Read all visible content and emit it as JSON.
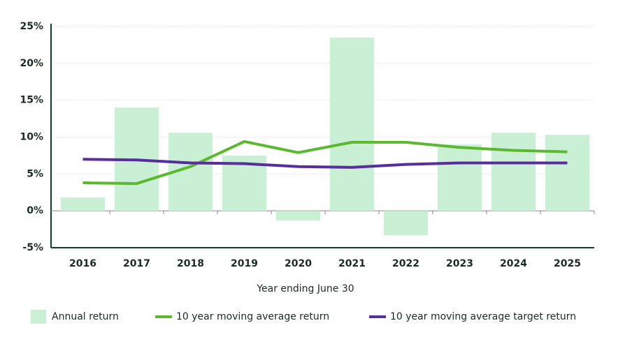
{
  "chart_data": {
    "type": "combo",
    "x_label": "Year ending June 30",
    "categories": [
      "2016",
      "2017",
      "2018",
      "2019",
      "2020",
      "2021",
      "2022",
      "2023",
      "2024",
      "2025"
    ],
    "ylim": [
      -5,
      25
    ],
    "yticks": [
      {
        "value": -5,
        "label": "-5%"
      },
      {
        "value": 0,
        "label": "0%"
      },
      {
        "value": 5,
        "label": "5%"
      },
      {
        "value": 10,
        "label": "10%"
      },
      {
        "value": 15,
        "label": "15%"
      },
      {
        "value": 20,
        "label": "20%"
      },
      {
        "value": 25,
        "label": "25%"
      }
    ],
    "grid": true,
    "series": [
      {
        "name": "Annual return",
        "type": "bar",
        "color": "#c9f0d5",
        "values": [
          1.8,
          14.0,
          10.6,
          7.5,
          -1.3,
          23.5,
          -3.3,
          9.0,
          10.6,
          10.3
        ]
      },
      {
        "name": "10 year moving average return",
        "type": "line",
        "color": "#5cb82e",
        "values": [
          3.8,
          3.7,
          6.0,
          9.4,
          7.9,
          9.3,
          9.3,
          8.6,
          8.2,
          8.0
        ]
      },
      {
        "name": "10 year moving average target return",
        "type": "line",
        "color": "#582e9c",
        "values": [
          7.0,
          6.9,
          6.5,
          6.4,
          6.0,
          5.9,
          6.3,
          6.5,
          6.5,
          6.5
        ]
      }
    ]
  }
}
